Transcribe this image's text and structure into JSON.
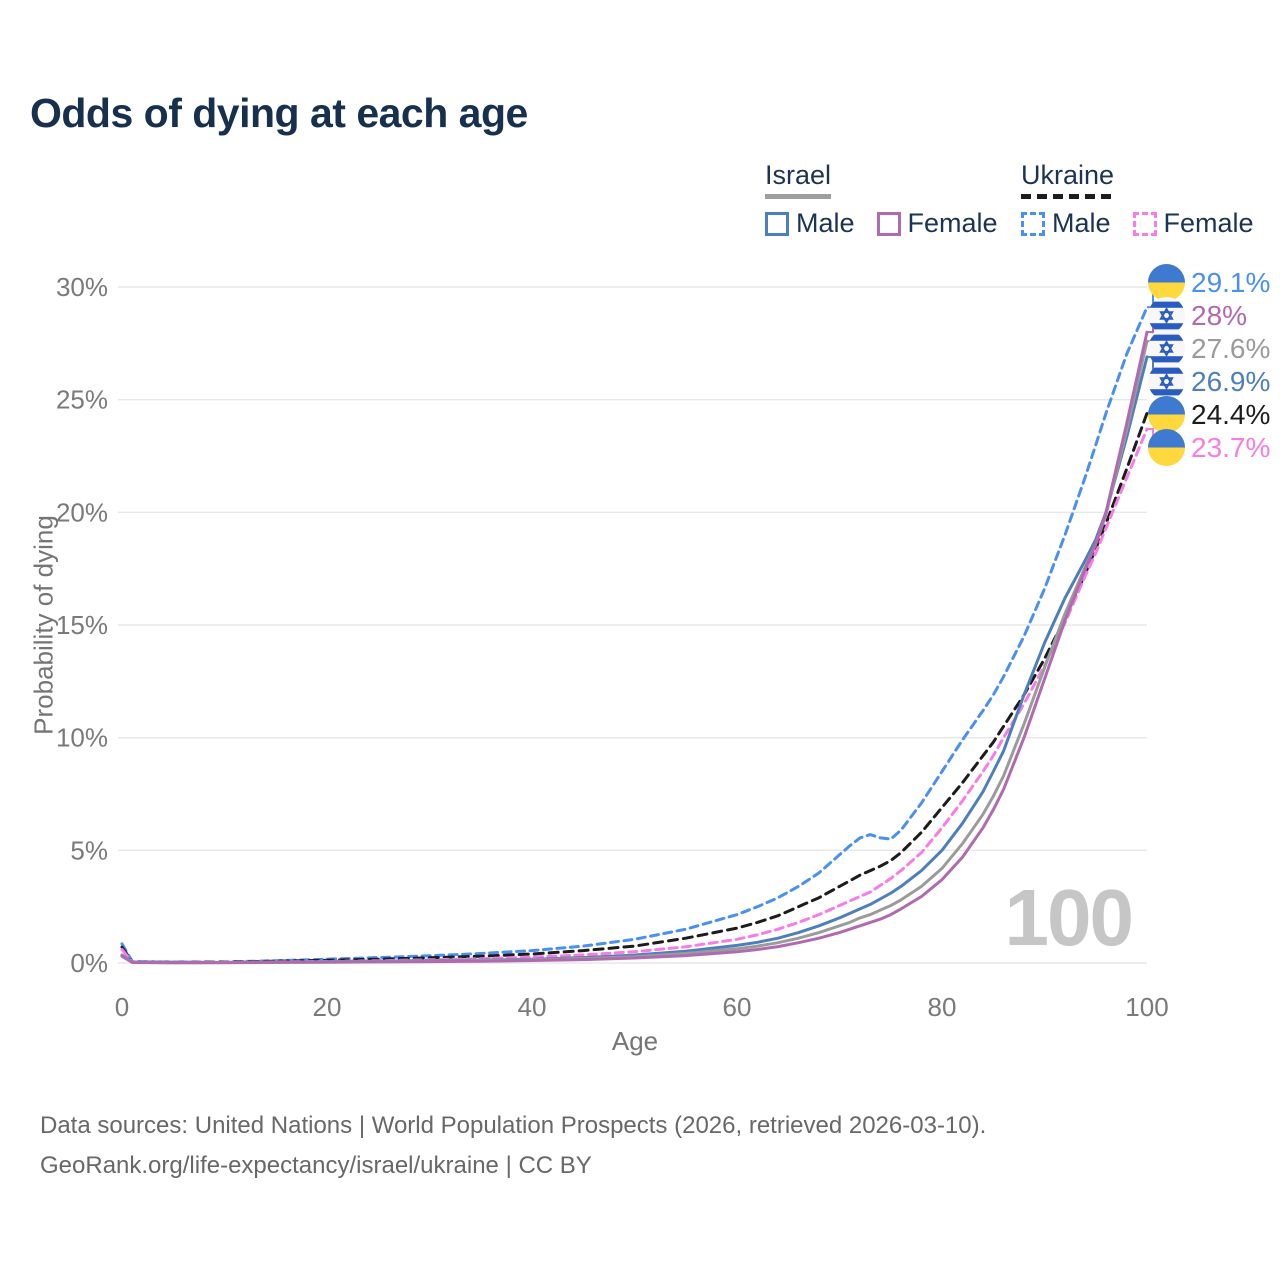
{
  "title": "Odds of dying at each age",
  "legend": {
    "groups": [
      {
        "name": "Israel",
        "underline_color": "#9f9f9f",
        "underline_style": "solid",
        "items": [
          {
            "label": "Male",
            "color": "#4e7fba",
            "style": "solid"
          },
          {
            "label": "Female",
            "color": "#b06ab0",
            "style": "solid"
          }
        ]
      },
      {
        "name": "Ukraine",
        "underline_color": "#1c1c1c",
        "underline_style": "dashed",
        "items": [
          {
            "label": "Male",
            "color": "#4a8ff2",
            "style": "dashed"
          },
          {
            "label": "Female",
            "color": "#f97ce5",
            "style": "dashed"
          }
        ]
      }
    ]
  },
  "watermark": "100",
  "footer": {
    "line1": "Data sources: United Nations | World Population Prospects (2026, retrieved 2026-03-10).",
    "line2": "GeoRank.org/life-expectancy/israel/ukraine | CC BY"
  },
  "chart_data": {
    "type": "line",
    "title": "Odds of dying at each age",
    "xlabel": "Age",
    "ylabel": "Probability of dying",
    "xlim": [
      0,
      100
    ],
    "ylim_percent": [
      0,
      30
    ],
    "grid": "horizontal",
    "legend_position": "top-right",
    "x_ticks": [
      0,
      20,
      40,
      60,
      80,
      100
    ],
    "y_tick_values": [
      0,
      5,
      10,
      15,
      20,
      25,
      30
    ],
    "y_tick_labels": [
      "0%",
      "5%",
      "10%",
      "15%",
      "20%",
      "25%",
      "30%"
    ],
    "x": [
      0,
      1,
      5,
      10,
      15,
      20,
      25,
      30,
      35,
      40,
      45,
      50,
      55,
      60,
      62,
      64,
      66,
      68,
      70,
      71,
      72,
      73,
      74,
      75,
      76,
      78,
      80,
      82,
      84,
      85,
      86,
      88,
      90,
      92,
      94,
      95,
      96,
      98,
      100
    ],
    "series": [
      {
        "name": "Ukraine Male",
        "country": "Ukraine",
        "sex": "Male",
        "color": "#4a8ff2",
        "dash": true,
        "flag": "ukraine",
        "end_label": "29.1%",
        "end_value": 29.1,
        "values": [
          0.85,
          0.06,
          0.04,
          0.05,
          0.1,
          0.17,
          0.24,
          0.32,
          0.42,
          0.55,
          0.75,
          1.05,
          1.5,
          2.15,
          2.5,
          2.9,
          3.4,
          4.0,
          4.8,
          5.2,
          5.55,
          5.7,
          5.55,
          5.5,
          5.9,
          7.1,
          8.5,
          9.9,
          11.2,
          11.9,
          12.7,
          14.5,
          16.6,
          19.0,
          21.6,
          23.0,
          24.4,
          27.0,
          29.1
        ]
      },
      {
        "name": "Israel Female",
        "country": "Israel",
        "sex": "Female",
        "color": "#b06ab0",
        "dash": false,
        "flag": "israel",
        "end_label": "28%",
        "end_value": 28.0,
        "values": [
          0.3,
          0.02,
          0.012,
          0.015,
          0.025,
          0.035,
          0.05,
          0.06,
          0.08,
          0.11,
          0.15,
          0.22,
          0.33,
          0.5,
          0.6,
          0.73,
          0.9,
          1.1,
          1.35,
          1.5,
          1.65,
          1.8,
          1.95,
          2.15,
          2.4,
          2.95,
          3.7,
          4.7,
          6.0,
          6.8,
          7.7,
          10.0,
          12.6,
          15.2,
          17.5,
          18.6,
          20.0,
          23.9,
          28.0
        ]
      },
      {
        "name": "Israel Both sexes",
        "country": "Israel",
        "sex": "Both",
        "color": "#9b9b9b",
        "dash": false,
        "flag": "israel",
        "end_label": "27.6%",
        "end_value": 27.6,
        "values": [
          0.32,
          0.025,
          0.015,
          0.02,
          0.03,
          0.05,
          0.06,
          0.08,
          0.11,
          0.14,
          0.2,
          0.28,
          0.42,
          0.63,
          0.75,
          0.9,
          1.1,
          1.35,
          1.65,
          1.8,
          2.0,
          2.15,
          2.35,
          2.55,
          2.8,
          3.4,
          4.2,
          5.3,
          6.6,
          7.4,
          8.3,
          10.6,
          13.1,
          15.5,
          17.6,
          18.6,
          19.9,
          23.6,
          27.6
        ]
      },
      {
        "name": "Israel Male",
        "country": "Israel",
        "sex": "Male",
        "color": "#4e7fba",
        "dash": false,
        "flag": "israel",
        "end_label": "26.9%",
        "end_value": 26.9,
        "values": [
          0.35,
          0.03,
          0.02,
          0.02,
          0.04,
          0.06,
          0.08,
          0.1,
          0.13,
          0.17,
          0.24,
          0.35,
          0.52,
          0.78,
          0.92,
          1.1,
          1.35,
          1.65,
          2.0,
          2.2,
          2.4,
          2.6,
          2.85,
          3.1,
          3.4,
          4.1,
          5.0,
          6.2,
          7.6,
          8.5,
          9.4,
          11.9,
          14.2,
          16.2,
          17.9,
          18.8,
          20.0,
          23.3,
          26.9
        ]
      },
      {
        "name": "Ukraine Both sexes",
        "country": "Ukraine",
        "sex": "Both",
        "color": "#1c1c1c",
        "dash": true,
        "flag": "ukraine",
        "end_label": "24.4%",
        "end_value": 24.4,
        "values": [
          0.7,
          0.05,
          0.03,
          0.04,
          0.08,
          0.12,
          0.17,
          0.23,
          0.3,
          0.4,
          0.55,
          0.75,
          1.1,
          1.55,
          1.8,
          2.1,
          2.5,
          2.9,
          3.4,
          3.65,
          3.9,
          4.1,
          4.3,
          4.55,
          4.9,
          5.8,
          6.9,
          8.0,
          9.2,
          9.8,
          10.5,
          11.9,
          13.5,
          15.3,
          17.3,
          18.4,
          19.5,
          21.9,
          24.4
        ]
      },
      {
        "name": "Ukraine Female",
        "country": "Ukraine",
        "sex": "Female",
        "color": "#f97ce5",
        "dash": true,
        "flag": "ukraine",
        "end_label": "23.7%",
        "end_value": 23.7,
        "values": [
          0.6,
          0.04,
          0.02,
          0.03,
          0.05,
          0.07,
          0.1,
          0.14,
          0.19,
          0.26,
          0.36,
          0.5,
          0.72,
          1.05,
          1.25,
          1.5,
          1.8,
          2.15,
          2.55,
          2.75,
          2.95,
          3.15,
          3.45,
          3.75,
          4.1,
          4.9,
          6.0,
          7.2,
          8.5,
          9.2,
          10.0,
          11.5,
          13.2,
          15.1,
          17.2,
          18.2,
          19.3,
          21.5,
          23.7
        ]
      }
    ]
  }
}
